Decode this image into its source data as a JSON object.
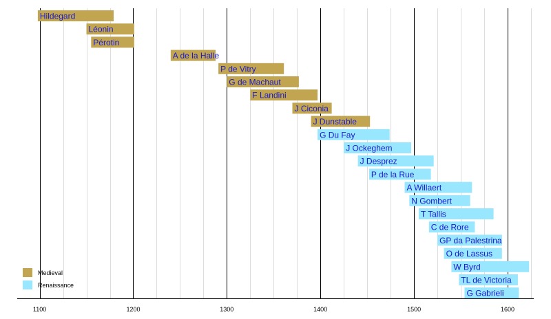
{
  "chart_data": {
    "type": "bar",
    "orientation": "horizontal-timeline",
    "title": "",
    "xlabel": "",
    "ylabel": "",
    "xlim": [
      1076,
      1628
    ],
    "x_ticks": [
      1100,
      1200,
      1300,
      1400,
      1500,
      1600
    ],
    "minor_tick_step": 25,
    "grid": true,
    "legend_position": "bottom-left",
    "series": [
      {
        "name": "Medieval",
        "color": "#c1a550"
      },
      {
        "name": "Renaissance",
        "color": "#99e6ff"
      }
    ],
    "composers": [
      {
        "name": "Hildegard",
        "start": 1098,
        "end": 1179,
        "period": "Medieval"
      },
      {
        "name": "Léonin",
        "start": 1150,
        "end": 1201,
        "period": "Medieval"
      },
      {
        "name": "Pérotin",
        "start": 1155,
        "end": 1201,
        "period": "Medieval"
      },
      {
        "name": "A de la Halle",
        "start": 1240,
        "end": 1288,
        "period": "Medieval"
      },
      {
        "name": "P de Vitry",
        "start": 1291,
        "end": 1361,
        "period": "Medieval"
      },
      {
        "name": "G de Machaut",
        "start": 1300,
        "end": 1377,
        "period": "Medieval"
      },
      {
        "name": "F Landini",
        "start": 1325,
        "end": 1397,
        "period": "Medieval"
      },
      {
        "name": "J Ciconia",
        "start": 1370,
        "end": 1412,
        "period": "Medieval"
      },
      {
        "name": "J Dunstable",
        "start": 1390,
        "end": 1453,
        "period": "Medieval"
      },
      {
        "name": "G Du Fay",
        "start": 1397,
        "end": 1474,
        "period": "Renaissance"
      },
      {
        "name": "J Ockeghem",
        "start": 1425,
        "end": 1497,
        "period": "Renaissance"
      },
      {
        "name": "J Desprez",
        "start": 1440,
        "end": 1521,
        "period": "Renaissance"
      },
      {
        "name": "P de la Rue",
        "start": 1452,
        "end": 1518,
        "period": "Renaissance"
      },
      {
        "name": "A Willaert",
        "start": 1490,
        "end": 1562,
        "period": "Renaissance"
      },
      {
        "name": "N Gombert",
        "start": 1495,
        "end": 1560,
        "period": "Renaissance"
      },
      {
        "name": "T Tallis",
        "start": 1505,
        "end": 1585,
        "period": "Renaissance"
      },
      {
        "name": "C de Rore",
        "start": 1516,
        "end": 1565,
        "period": "Renaissance"
      },
      {
        "name": "GP da Palestrina",
        "start": 1525,
        "end": 1594,
        "period": "Renaissance"
      },
      {
        "name": "O de Lassus",
        "start": 1532,
        "end": 1594,
        "period": "Renaissance"
      },
      {
        "name": "W Byrd",
        "start": 1540,
        "end": 1623,
        "period": "Renaissance"
      },
      {
        "name": "TL de Victoria",
        "start": 1548,
        "end": 1611,
        "period": "Renaissance"
      },
      {
        "name": "G Gabrieli",
        "start": 1554,
        "end": 1612,
        "period": "Renaissance"
      }
    ]
  }
}
